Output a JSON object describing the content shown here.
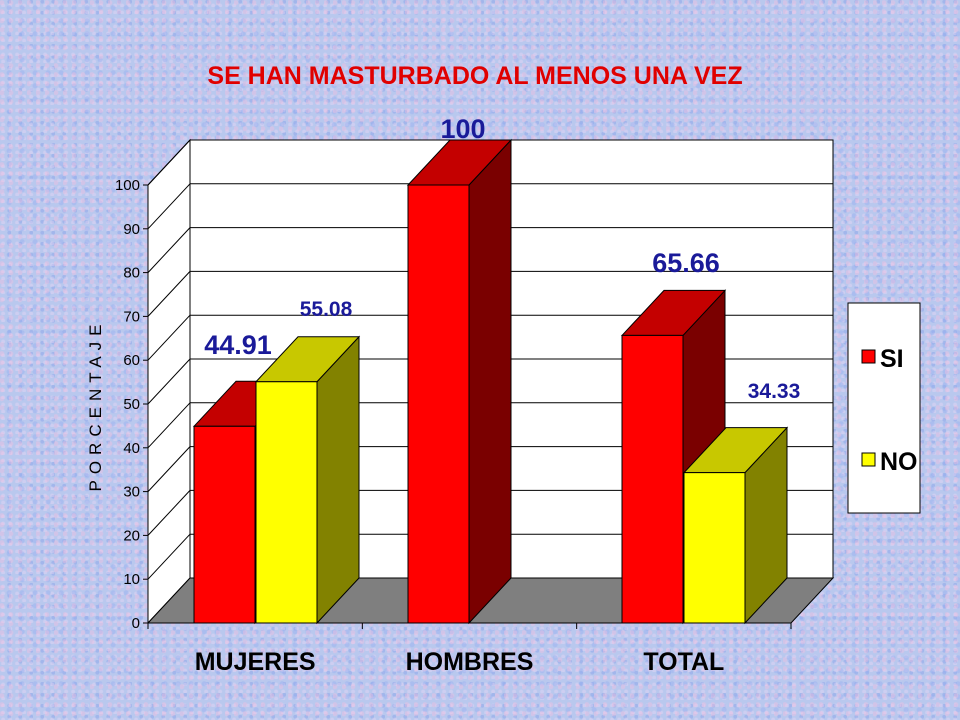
{
  "chart_data": {
    "type": "bar",
    "title": "SE HAN MASTURBADO AL MENOS UNA VEZ",
    "ylabel": "PORCENTAJE",
    "xlabel": "",
    "categories": [
      "MUJERES",
      "HOMBRES",
      "TOTAL"
    ],
    "series": [
      {
        "name": "SI",
        "values": [
          44.91,
          100,
          65.66
        ],
        "labels": [
          "44.91",
          "100",
          "65.66"
        ]
      },
      {
        "name": "NO",
        "values": [
          55.08,
          null,
          34.33
        ],
        "labels": [
          "55.08",
          "",
          "34.33"
        ]
      }
    ],
    "yticks": [
      "0",
      "10",
      "20",
      "30",
      "40",
      "50",
      "60",
      "70",
      "80",
      "90",
      "100"
    ],
    "ylim": [
      0,
      100
    ],
    "grid": true,
    "legend_position": "right",
    "three_d": true,
    "colors": {
      "si_front": "#ff0000",
      "si_top": "#c40000",
      "si_side": "#7a0000",
      "no_front": "#ffff00",
      "no_top": "#c8c800",
      "no_side": "#828200",
      "title": "#e00000",
      "data_label": "#1a1a99",
      "floor": "#7f7f7f",
      "wall": "#ffffff"
    }
  }
}
